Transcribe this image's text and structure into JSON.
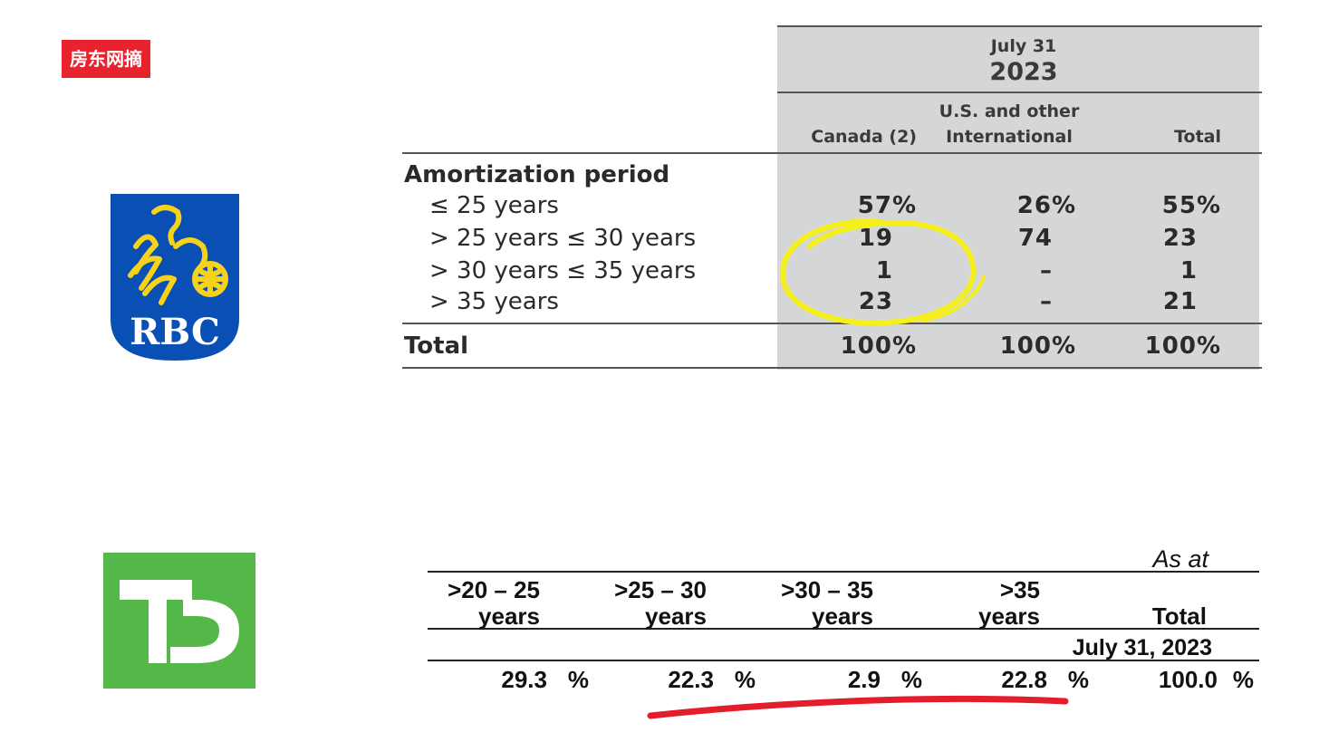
{
  "watermark": {
    "label": "房东网摘"
  },
  "rbc": {
    "logo_text": "RBC",
    "period_header": "July 31",
    "year_header": "2023",
    "columns": [
      "Canada (2)",
      "U.S. and other",
      "International",
      "Total"
    ],
    "section_label": "Amortization period",
    "rows": [
      {
        "label": "≤ 25 years",
        "canada": "57%",
        "us_intl": "26%",
        "total": "55%"
      },
      {
        "label": "> 25 years ≤ 30 years",
        "canada": "19",
        "us_intl": "74",
        "total": "23"
      },
      {
        "label": "> 30 years ≤ 35 years",
        "canada": "1",
        "us_intl": "–",
        "total": "1"
      },
      {
        "label": "> 35 years",
        "canada": "23",
        "us_intl": "–",
        "total": "21"
      }
    ],
    "total_row": {
      "label": "Total",
      "canada": "100%",
      "us_intl": "100%",
      "total": "100%"
    },
    "highlight_color": "#f5ef1c"
  },
  "td": {
    "logo_text": "TD",
    "as_at": "As at",
    "headers": [
      {
        "line1": ">20 – 25",
        "line2": "years"
      },
      {
        "line1": ">25 – 30",
        "line2": "years"
      },
      {
        "line1": ">30 – 35",
        "line2": "years"
      },
      {
        "line1": ">35",
        "line2": "years"
      },
      {
        "line1": "",
        "line2": "Total"
      }
    ],
    "date_label": "July 31, 2023",
    "values": [
      {
        "value": "29.3",
        "unit": "%"
      },
      {
        "value": "22.3",
        "unit": "%"
      },
      {
        "value": "2.9",
        "unit": "%"
      },
      {
        "value": "22.8",
        "unit": "%"
      },
      {
        "value": "100.0",
        "unit": "%"
      }
    ],
    "underline_color": "#e31d2b",
    "brand_color": "#54b848"
  }
}
